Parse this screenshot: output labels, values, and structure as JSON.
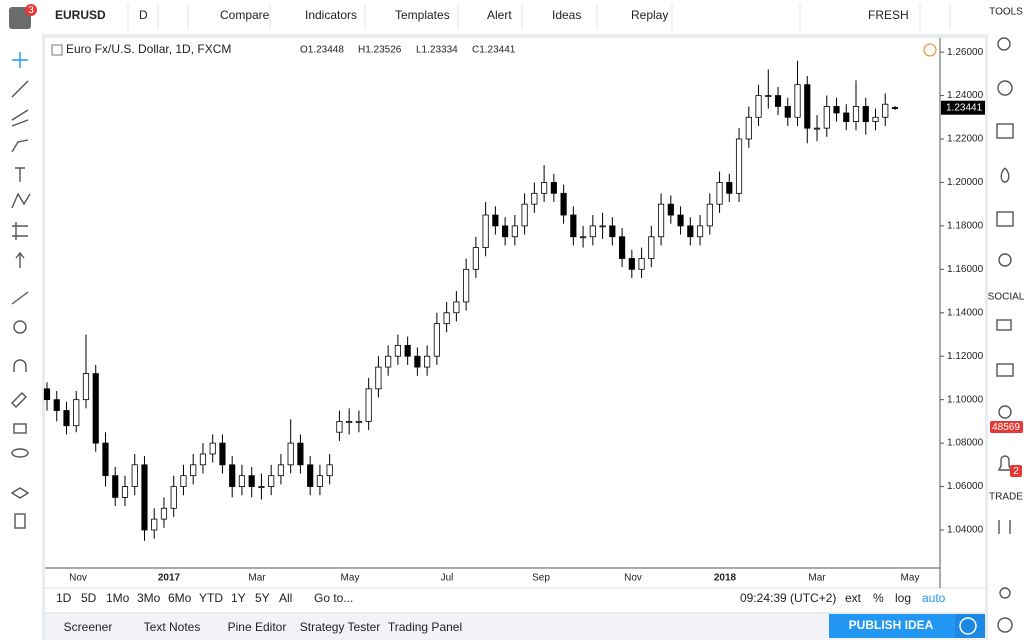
{
  "toolbar": {
    "symbol": "EURUSD",
    "interval": "D",
    "items": [
      "Compare",
      "Indicators",
      "Templates",
      "Alert",
      "Ideas",
      "Replay"
    ],
    "badge": "3",
    "layout": "FRESH"
  },
  "side_panel": {
    "tools": "TOOLS",
    "social": "SOCIAL",
    "count": "48569",
    "alerts": "2",
    "trade": "TRADE"
  },
  "chart_data": {
    "type": "candlestick",
    "title": "Euro Fx/U.S. Dollar, 1D, FXCM",
    "ohlc_header": [
      "O1.23448",
      "H1.23526",
      "L1.23334",
      "C1.23441"
    ],
    "x_labels": [
      "Nov",
      "2017",
      "Mar",
      "May",
      "Jul",
      "Sep",
      "Nov",
      "2018",
      "Mar",
      "May"
    ],
    "ylim": [
      1.0225,
      1.2665
    ],
    "yticks": [
      {
        "value": 1.04,
        "label": "1.04000"
      },
      {
        "value": 1.06,
        "label": "1.06000"
      },
      {
        "value": 1.08,
        "label": "1.08000"
      },
      {
        "value": 1.1,
        "label": "1.10000"
      },
      {
        "value": 1.12,
        "label": "1.12000"
      },
      {
        "value": 1.14,
        "label": "1.14000"
      },
      {
        "value": 1.16,
        "label": "1.16000"
      },
      {
        "value": 1.18,
        "label": "1.18000"
      },
      {
        "value": 1.2,
        "label": "1.20000"
      },
      {
        "value": 1.22,
        "label": "1.22000"
      },
      {
        "value": 1.24,
        "label": "1.24000"
      },
      {
        "value": 1.26,
        "label": "1.26000"
      }
    ],
    "up_color": "#ffffff",
    "down_color": "#000000",
    "line_color": "#000000",
    "ohlc": [
      [
        1.105,
        1.108,
        1.095,
        1.1
      ],
      [
        1.1,
        1.104,
        1.09,
        1.095
      ],
      [
        1.095,
        1.099,
        1.084,
        1.088
      ],
      [
        1.088,
        1.104,
        1.085,
        1.1
      ],
      [
        1.1,
        1.13,
        1.096,
        1.112
      ],
      [
        1.112,
        1.116,
        1.076,
        1.08
      ],
      [
        1.08,
        1.085,
        1.06,
        1.065
      ],
      [
        1.065,
        1.069,
        1.051,
        1.055
      ],
      [
        1.055,
        1.065,
        1.051,
        1.06
      ],
      [
        1.06,
        1.075,
        1.056,
        1.07
      ],
      [
        1.07,
        1.074,
        1.035,
        1.04
      ],
      [
        1.04,
        1.05,
        1.036,
        1.045
      ],
      [
        1.045,
        1.055,
        1.041,
        1.05
      ],
      [
        1.05,
        1.065,
        1.046,
        1.06
      ],
      [
        1.06,
        1.07,
        1.056,
        1.065
      ],
      [
        1.065,
        1.075,
        1.061,
        1.07
      ],
      [
        1.07,
        1.08,
        1.066,
        1.075
      ],
      [
        1.075,
        1.084,
        1.071,
        1.08
      ],
      [
        1.08,
        1.084,
        1.066,
        1.07
      ],
      [
        1.07,
        1.074,
        1.055,
        1.06
      ],
      [
        1.06,
        1.07,
        1.056,
        1.065
      ],
      [
        1.065,
        1.069,
        1.055,
        1.06
      ],
      [
        1.06,
        1.066,
        1.054,
        1.06
      ],
      [
        1.06,
        1.07,
        1.056,
        1.065
      ],
      [
        1.065,
        1.075,
        1.061,
        1.07
      ],
      [
        1.07,
        1.091,
        1.066,
        1.08
      ],
      [
        1.08,
        1.084,
        1.066,
        1.07
      ],
      [
        1.07,
        1.074,
        1.056,
        1.06
      ],
      [
        1.06,
        1.07,
        1.056,
        1.065
      ],
      [
        1.065,
        1.075,
        1.061,
        1.07
      ],
      [
        1.085,
        1.095,
        1.081,
        1.09
      ],
      [
        1.09,
        1.096,
        1.084,
        1.09
      ],
      [
        1.09,
        1.095,
        1.085,
        1.09
      ],
      [
        1.09,
        1.11,
        1.086,
        1.105
      ],
      [
        1.105,
        1.12,
        1.101,
        1.115
      ],
      [
        1.115,
        1.125,
        1.111,
        1.12
      ],
      [
        1.12,
        1.13,
        1.116,
        1.125
      ],
      [
        1.125,
        1.129,
        1.116,
        1.12
      ],
      [
        1.12,
        1.124,
        1.111,
        1.115
      ],
      [
        1.115,
        1.125,
        1.111,
        1.12
      ],
      [
        1.12,
        1.14,
        1.116,
        1.135
      ],
      [
        1.135,
        1.145,
        1.131,
        1.14
      ],
      [
        1.14,
        1.15,
        1.136,
        1.145
      ],
      [
        1.145,
        1.165,
        1.141,
        1.16
      ],
      [
        1.16,
        1.175,
        1.156,
        1.17
      ],
      [
        1.17,
        1.191,
        1.166,
        1.185
      ],
      [
        1.185,
        1.189,
        1.176,
        1.18
      ],
      [
        1.18,
        1.184,
        1.171,
        1.175
      ],
      [
        1.175,
        1.185,
        1.171,
        1.18
      ],
      [
        1.18,
        1.195,
        1.176,
        1.19
      ],
      [
        1.19,
        1.2,
        1.186,
        1.195
      ],
      [
        1.195,
        1.208,
        1.191,
        1.2
      ],
      [
        1.2,
        1.204,
        1.191,
        1.195
      ],
      [
        1.195,
        1.199,
        1.181,
        1.185
      ],
      [
        1.185,
        1.189,
        1.171,
        1.175
      ],
      [
        1.175,
        1.18,
        1.17,
        1.175
      ],
      [
        1.175,
        1.185,
        1.171,
        1.18
      ],
      [
        1.18,
        1.186,
        1.174,
        1.18
      ],
      [
        1.18,
        1.184,
        1.171,
        1.175
      ],
      [
        1.175,
        1.179,
        1.161,
        1.165
      ],
      [
        1.165,
        1.169,
        1.156,
        1.16
      ],
      [
        1.16,
        1.17,
        1.156,
        1.165
      ],
      [
        1.165,
        1.18,
        1.161,
        1.175
      ],
      [
        1.175,
        1.195,
        1.171,
        1.19
      ],
      [
        1.19,
        1.194,
        1.181,
        1.185
      ],
      [
        1.185,
        1.189,
        1.176,
        1.18
      ],
      [
        1.18,
        1.184,
        1.171,
        1.175
      ],
      [
        1.175,
        1.185,
        1.171,
        1.18
      ],
      [
        1.18,
        1.195,
        1.176,
        1.19
      ],
      [
        1.19,
        1.205,
        1.186,
        1.2
      ],
      [
        1.2,
        1.204,
        1.191,
        1.195
      ],
      [
        1.195,
        1.225,
        1.191,
        1.22
      ],
      [
        1.22,
        1.235,
        1.216,
        1.23
      ],
      [
        1.23,
        1.245,
        1.226,
        1.24
      ],
      [
        1.24,
        1.252,
        1.234,
        1.24
      ],
      [
        1.24,
        1.244,
        1.231,
        1.235
      ],
      [
        1.235,
        1.239,
        1.226,
        1.23
      ],
      [
        1.23,
        1.256,
        1.226,
        1.245
      ],
      [
        1.245,
        1.249,
        1.218,
        1.225
      ],
      [
        1.225,
        1.231,
        1.219,
        1.225
      ],
      [
        1.225,
        1.24,
        1.221,
        1.235
      ],
      [
        1.235,
        1.239,
        1.228,
        1.232
      ],
      [
        1.232,
        1.236,
        1.224,
        1.228
      ],
      [
        1.228,
        1.247,
        1.224,
        1.235
      ],
      [
        1.235,
        1.239,
        1.222,
        1.228
      ],
      [
        1.228,
        1.234,
        1.224,
        1.23
      ],
      [
        1.23,
        1.241,
        1.226,
        1.236
      ],
      [
        1.23448,
        1.23526,
        1.23334,
        1.23441
      ]
    ]
  },
  "bottom_bar": {
    "ranges": [
      "1D",
      "5D",
      "1Mo",
      "3Mo",
      "6Mo",
      "YTD",
      "1Y",
      "5Y",
      "All"
    ],
    "goto": "Go to...",
    "clock": "09:24:39 (UTC+2)",
    "options": [
      "ext",
      "%",
      "log",
      "auto"
    ]
  },
  "tabs": {
    "items": [
      "Screener",
      "Text Notes",
      "Pine Editor",
      "Strategy Tester",
      "Trading Panel"
    ],
    "publish": "PUBLISH IDEA"
  }
}
